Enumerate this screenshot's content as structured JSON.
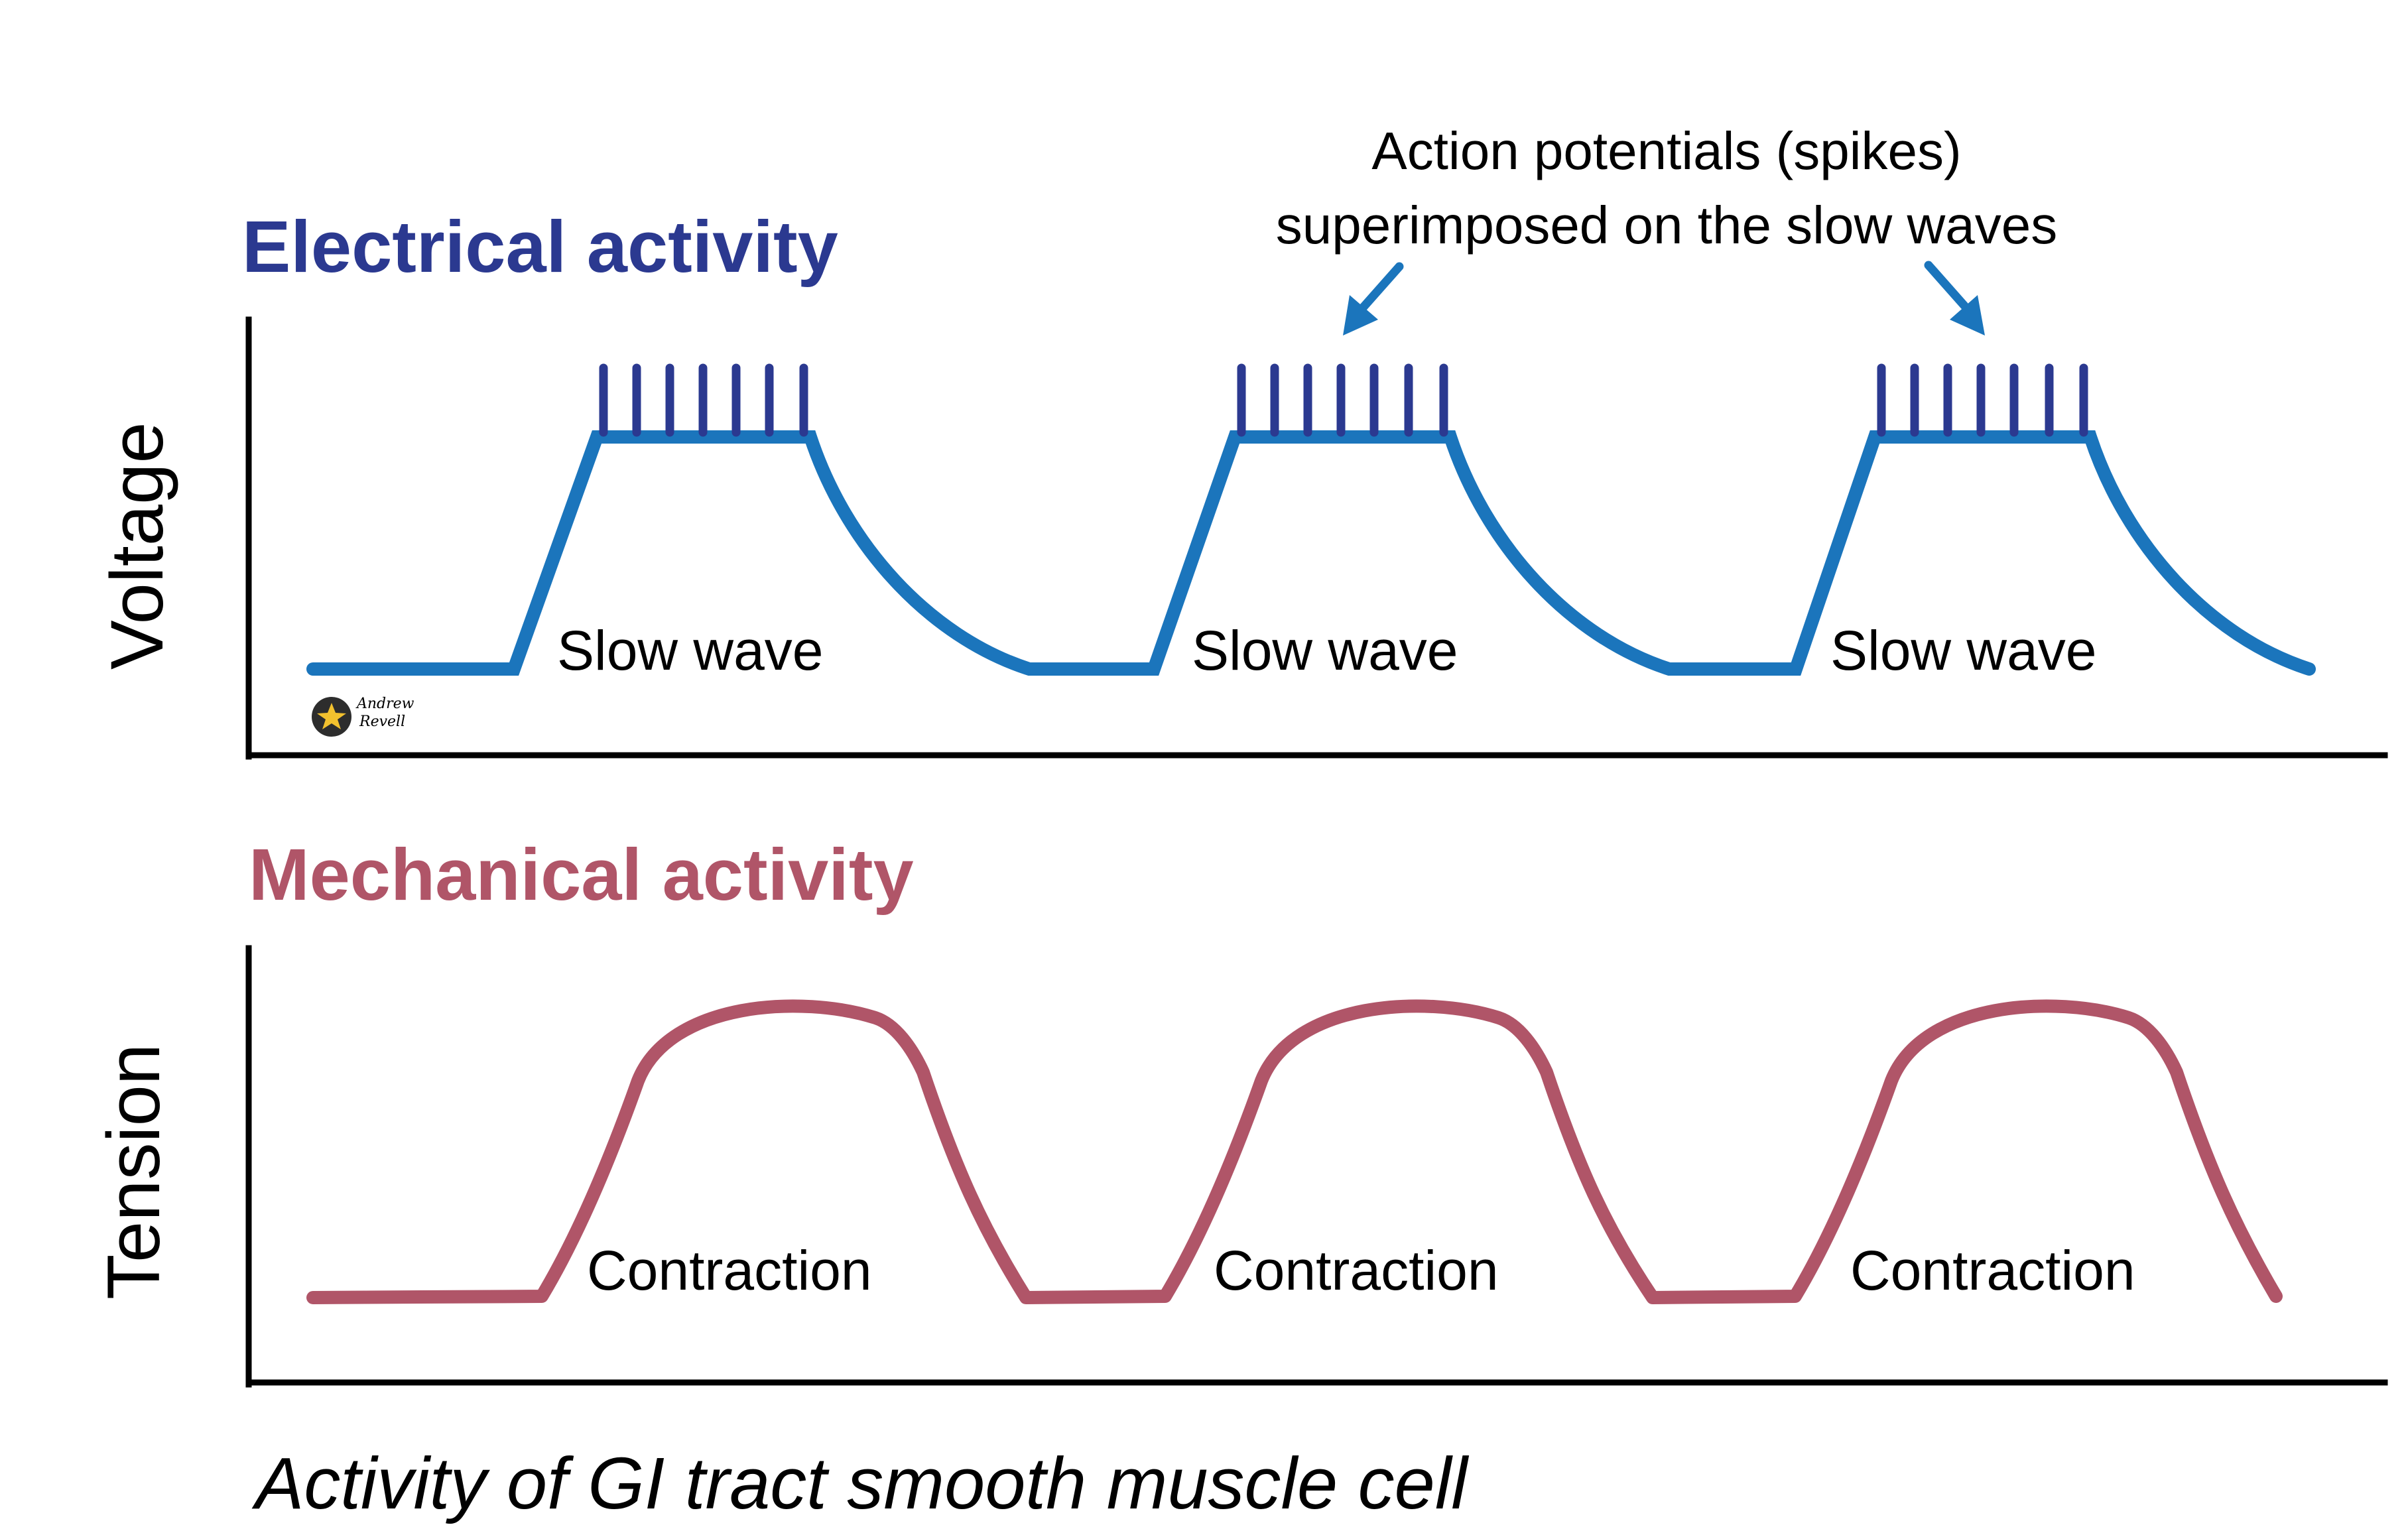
{
  "electrical": {
    "title": "Electrical activity",
    "axis_label": "Voltage",
    "wave_label": "Slow wave",
    "annotation_line1": "Action potentials (spikes)",
    "annotation_line2": "superimposed on the slow waves",
    "wave_count": 3,
    "spikes_per_wave": 7
  },
  "mechanical": {
    "title": "Mechanical activity",
    "axis_label": "Tension",
    "wave_label": "Contraction",
    "wave_count": 3
  },
  "caption": "Activity of GI tract smooth muscle cell",
  "signature": {
    "line1": "Andrew",
    "line2": "Revell"
  },
  "colors": {
    "electrical_title": "#2b3990",
    "slow_wave": "#1b75bc",
    "spikes": "#2b3990",
    "arrows": "#1b75bc",
    "mechanical_title": "#b05568",
    "tension_curve": "#b05568",
    "axes": "#000000",
    "text": "#000000"
  }
}
